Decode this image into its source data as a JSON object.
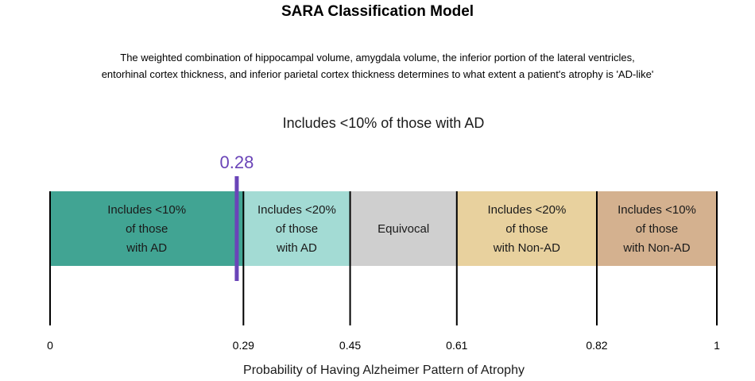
{
  "title": "SARA Classification Model",
  "subtitle_lines": [
    "The weighted combination of hippocampal volume, amygdala volume, the inferior portion of the lateral ventricles,",
    "entorhinal cortex thickness, and inferior parietal cortex thickness determines to what extent a patient's atrophy is 'AD-like'"
  ],
  "result_text": "Includes <10% of those with AD",
  "chart_data": {
    "type": "bar",
    "title": "SARA Classification Model",
    "xlabel": "Probability of Having Alzheimer Pattern of Atrophy",
    "xlim": [
      0,
      1
    ],
    "x_ticks": [
      0,
      0.29,
      0.45,
      0.61,
      0.82,
      1
    ],
    "x_tick_labels": [
      "0",
      "0.29",
      "0.45",
      "0.61",
      "0.82",
      "1"
    ],
    "segments": [
      {
        "start": 0,
        "end": 0.29,
        "label_lines": [
          "Includes <10%",
          "of those",
          "with AD"
        ],
        "color": "#41a493"
      },
      {
        "start": 0.29,
        "end": 0.45,
        "label_lines": [
          "Includes <20%",
          "of those",
          "with AD"
        ],
        "color": "#a3dbd4"
      },
      {
        "start": 0.45,
        "end": 0.61,
        "label_lines": [
          "Equivocal"
        ],
        "color": "#cfcfcf"
      },
      {
        "start": 0.61,
        "end": 0.82,
        "label_lines": [
          "Includes <20%",
          "of those",
          "with Non-AD"
        ],
        "color": "#e8d19e"
      },
      {
        "start": 0.82,
        "end": 1,
        "label_lines": [
          "Includes <10%",
          "of those",
          "with Non-AD"
        ],
        "color": "#d4b18f"
      }
    ],
    "marker": {
      "value": 0.28,
      "label": "0.28",
      "color": "#6a44b8"
    }
  }
}
